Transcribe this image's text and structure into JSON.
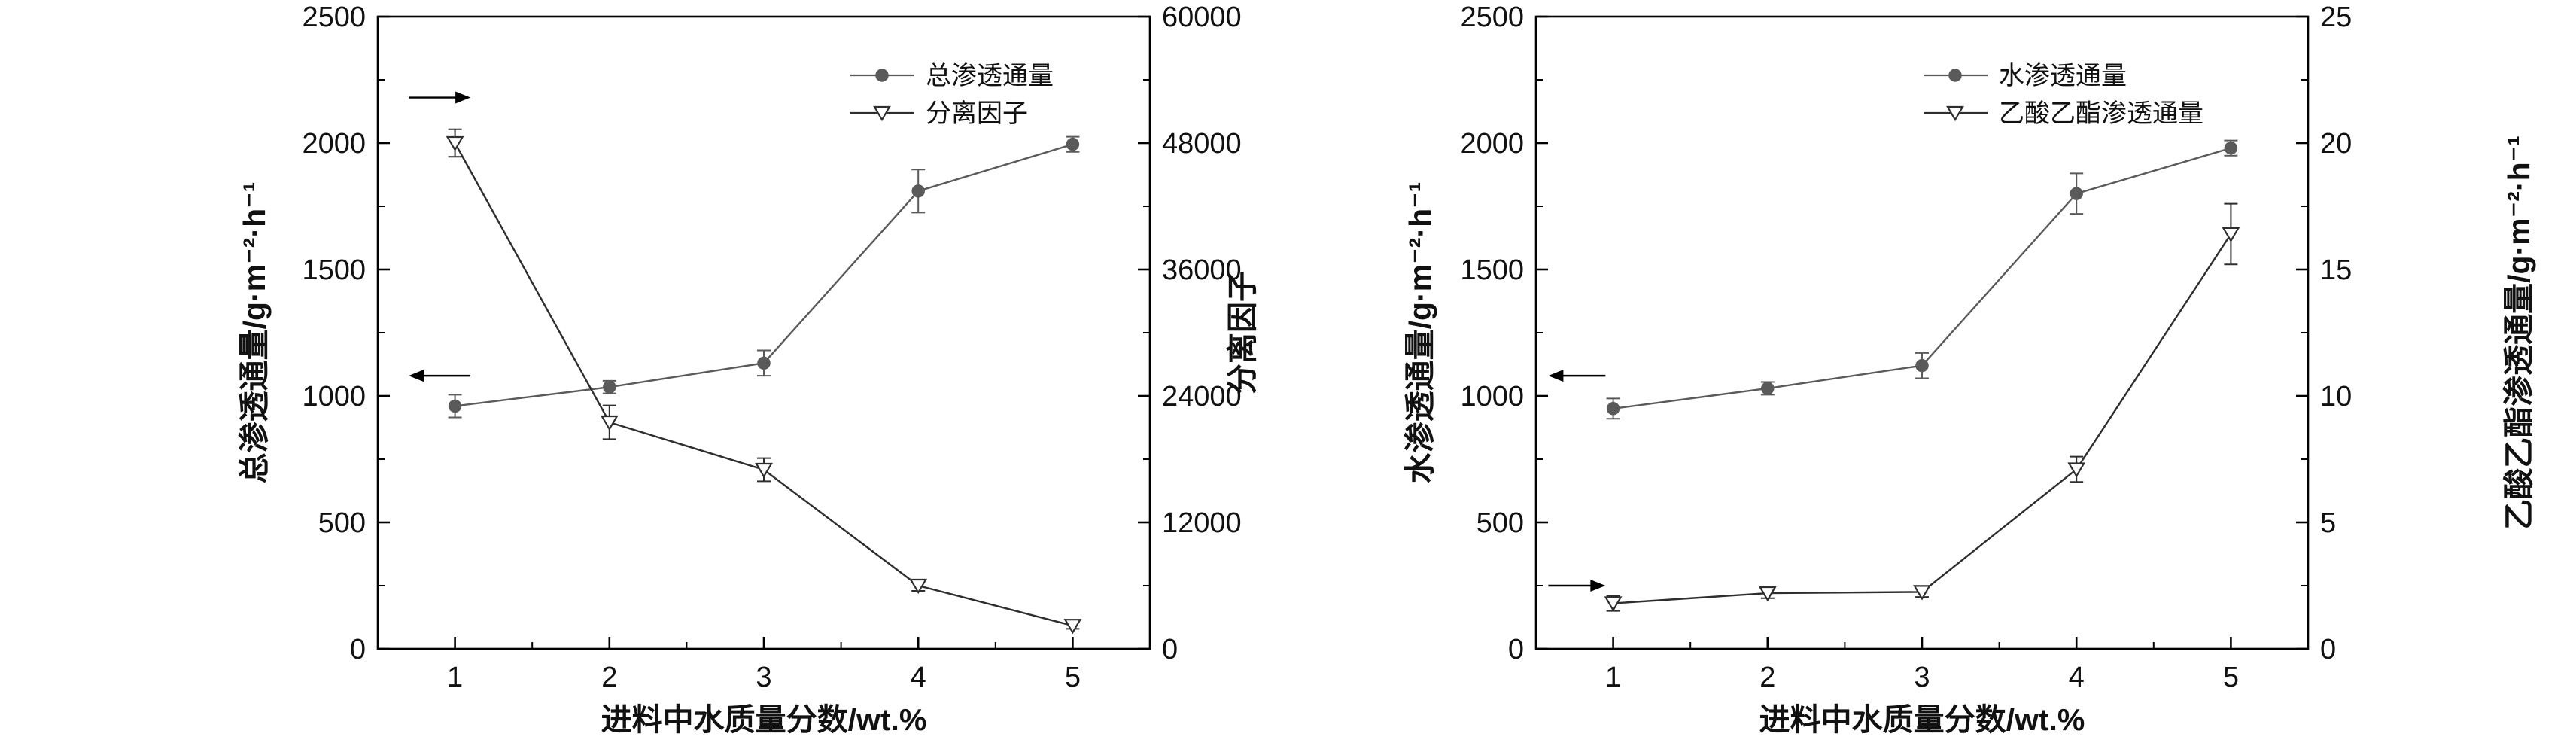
{
  "style": {
    "background": "#ffffff",
    "axis_color": "#000000",
    "text_color": "#111111"
  },
  "chart_data": [
    {
      "type": "line",
      "title": "",
      "x": [
        1,
        2,
        3,
        4,
        5
      ],
      "xlabel": "进料中水质量分数/wt.%",
      "xlim": [
        0.5,
        5.5
      ],
      "x_ticks": [
        1,
        2,
        3,
        4,
        5
      ],
      "grid": false,
      "legend_position": "top-center",
      "left_axis": {
        "label": "总渗透通量/g·m⁻²·h⁻¹",
        "lim": [
          0,
          2500
        ],
        "ticks": [
          0,
          500,
          1000,
          1500,
          2000,
          2500
        ]
      },
      "right_axis": {
        "label": "分离因子",
        "lim": [
          0,
          60000
        ],
        "ticks": [
          0,
          12000,
          24000,
          36000,
          48000,
          60000
        ]
      },
      "series": [
        {
          "name": "总渗透通量",
          "axis": "left",
          "marker": "circle-filled",
          "color": "#5a5a5a",
          "values": [
            960,
            1035,
            1130,
            1810,
            1995
          ],
          "errors": [
            45,
            25,
            50,
            85,
            30
          ]
        },
        {
          "name": "分离因子",
          "axis": "right",
          "marker": "triangle-open",
          "color": "#2e2e2e",
          "values": [
            48000,
            21500,
            17000,
            6000,
            2200
          ],
          "errors": [
            1300,
            1600,
            1100,
            500,
            300
          ]
        }
      ],
      "annotations": [
        {
          "type": "arrow",
          "points_to": "right-axis",
          "x1": 0.7,
          "x2": 1.1,
          "y": 2180
        },
        {
          "type": "arrow",
          "points_to": "left-axis",
          "x1": 1.1,
          "x2": 0.7,
          "y": 1080
        }
      ]
    },
    {
      "type": "line",
      "title": "",
      "x": [
        1,
        2,
        3,
        4,
        5
      ],
      "xlabel": "进料中水质量分数/wt.%",
      "xlim": [
        0.5,
        5.5
      ],
      "x_ticks": [
        1,
        2,
        3,
        4,
        5
      ],
      "grid": false,
      "legend_position": "top-center",
      "left_axis": {
        "label": "水渗透通量/g·m⁻²·h⁻¹",
        "lim": [
          0,
          2500
        ],
        "ticks": [
          0,
          500,
          1000,
          1500,
          2000,
          2500
        ]
      },
      "right_axis": {
        "label": "乙酸乙酯渗透通量/g·m⁻²·h⁻¹",
        "lim": [
          0,
          25
        ],
        "ticks": [
          0,
          5,
          10,
          15,
          20,
          25
        ]
      },
      "series": [
        {
          "name": "水渗透通量",
          "axis": "left",
          "marker": "circle-filled",
          "color": "#5a5a5a",
          "values": [
            950,
            1030,
            1120,
            1800,
            1980
          ],
          "errors": [
            40,
            25,
            50,
            80,
            30
          ]
        },
        {
          "name": "乙酸乙酯渗透通量",
          "axis": "right",
          "marker": "triangle-open",
          "color": "#2e2e2e",
          "values": [
            1.8,
            2.2,
            2.25,
            7.1,
            16.4
          ],
          "errors": [
            0.3,
            0.2,
            0.2,
            0.5,
            1.2
          ]
        }
      ],
      "annotations": [
        {
          "type": "arrow",
          "points_to": "left-axis",
          "x1": 0.95,
          "x2": 0.58,
          "y": 1080
        },
        {
          "type": "arrow",
          "points_to": "right-axis",
          "x1": 0.58,
          "x2": 0.95,
          "y": 250
        }
      ]
    }
  ]
}
